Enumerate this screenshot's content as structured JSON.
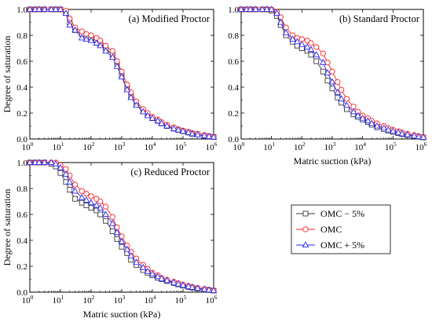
{
  "chart_data": {
    "type": "line",
    "log_x": true,
    "xlim": [
      1,
      1000000
    ],
    "ylim": [
      0,
      1.0
    ],
    "x_ticks": [
      {
        "base": "10",
        "exp": "0"
      },
      {
        "base": "10",
        "exp": "1"
      },
      {
        "base": "10",
        "exp": "2"
      },
      {
        "base": "10",
        "exp": "3"
      },
      {
        "base": "10",
        "exp": "4"
      },
      {
        "base": "10",
        "exp": "5"
      },
      {
        "base": "10",
        "exp": "6"
      }
    ],
    "y_ticks": [
      0.0,
      0.2,
      0.4,
      0.6,
      0.8,
      1.0
    ],
    "y_tick_labels": [
      "0.0",
      "0.2",
      "0.4",
      "0.6",
      "0.8",
      "1.0"
    ],
    "xlabel": "Matric suction (kPa)",
    "ylabel": "Degree of saturation",
    "x": [
      1,
      1.5,
      2,
      3,
      5,
      7,
      10,
      15,
      20,
      30,
      50,
      70,
      100,
      150,
      200,
      300,
      500,
      700,
      1000,
      1500,
      2000,
      3000,
      5000,
      7000,
      10000,
      15000,
      20000,
      30000,
      50000,
      70000,
      100000,
      150000,
      200000,
      300000,
      500000,
      700000,
      1000000
    ],
    "legend": {
      "placement": "right",
      "entries": [
        {
          "label": "OMC − 5%",
          "color": "#3a3a3a",
          "marker": "square"
        },
        {
          "label": "OMC",
          "color": "#ff2020",
          "marker": "circle"
        },
        {
          "label": "OMC + 5%",
          "color": "#2a2af0",
          "marker": "triangle"
        }
      ]
    },
    "panels": [
      {
        "label": "(a) Modified Proctor",
        "show_xlabel": false,
        "show_ylabel": true,
        "series": [
          {
            "name": "OMC − 5%",
            "values": [
              1.0,
              1.0,
              1.0,
              1.0,
              1.0,
              1.0,
              1.0,
              0.98,
              0.9,
              0.84,
              0.81,
              0.79,
              0.78,
              0.76,
              0.73,
              0.7,
              0.65,
              0.58,
              0.49,
              0.39,
              0.33,
              0.27,
              0.22,
              0.19,
              0.16,
              0.14,
              0.12,
              0.1,
              0.08,
              0.07,
              0.06,
              0.05,
              0.04,
              0.035,
              0.025,
              0.02,
              0.015
            ]
          },
          {
            "name": "OMC",
            "values": [
              1.0,
              1.0,
              1.0,
              1.0,
              1.0,
              1.0,
              1.0,
              0.99,
              0.93,
              0.86,
              0.83,
              0.81,
              0.8,
              0.78,
              0.76,
              0.72,
              0.68,
              0.6,
              0.52,
              0.42,
              0.36,
              0.29,
              0.23,
              0.2,
              0.17,
              0.15,
              0.13,
              0.11,
              0.09,
              0.075,
              0.065,
              0.055,
              0.045,
              0.04,
              0.03,
              0.022,
              0.017
            ]
          },
          {
            "name": "OMC + 5%",
            "values": [
              1.0,
              1.0,
              1.0,
              1.0,
              1.0,
              1.0,
              1.0,
              0.97,
              0.88,
              0.84,
              0.78,
              0.77,
              0.76,
              0.74,
              0.72,
              0.68,
              0.63,
              0.56,
              0.48,
              0.38,
              0.32,
              0.26,
              0.21,
              0.18,
              0.16,
              0.14,
              0.12,
              0.1,
              0.08,
              0.07,
              0.06,
              0.05,
              0.04,
              0.033,
              0.025,
              0.02,
              0.015
            ]
          }
        ]
      },
      {
        "label": "(b) Standard Proctor",
        "show_xlabel": true,
        "show_ylabel": false,
        "series": [
          {
            "name": "OMC − 5%",
            "values": [
              1.0,
              1.0,
              1.0,
              1.0,
              1.0,
              1.0,
              0.99,
              0.95,
              0.88,
              0.8,
              0.75,
              0.72,
              0.7,
              0.68,
              0.65,
              0.6,
              0.52,
              0.45,
              0.39,
              0.32,
              0.28,
              0.23,
              0.19,
              0.17,
              0.15,
              0.13,
              0.11,
              0.09,
              0.075,
              0.065,
              0.055,
              0.045,
              0.038,
              0.03,
              0.022,
              0.017,
              0.012
            ]
          },
          {
            "name": "OMC",
            "values": [
              1.0,
              1.0,
              1.0,
              1.0,
              1.0,
              1.0,
              1.0,
              0.98,
              0.94,
              0.86,
              0.8,
              0.78,
              0.77,
              0.76,
              0.74,
              0.71,
              0.66,
              0.59,
              0.52,
              0.44,
              0.38,
              0.31,
              0.25,
              0.21,
              0.18,
              0.16,
              0.14,
              0.12,
              0.1,
              0.085,
              0.07,
              0.06,
              0.05,
              0.04,
              0.03,
              0.022,
              0.016
            ]
          },
          {
            "name": "OMC + 5%",
            "values": [
              1.0,
              1.0,
              1.0,
              1.0,
              1.0,
              1.0,
              1.0,
              0.97,
              0.9,
              0.82,
              0.77,
              0.75,
              0.73,
              0.71,
              0.69,
              0.65,
              0.59,
              0.51,
              0.44,
              0.36,
              0.31,
              0.26,
              0.21,
              0.18,
              0.16,
              0.14,
              0.12,
              0.1,
              0.085,
              0.07,
              0.06,
              0.05,
              0.04,
              0.033,
              0.024,
              0.018,
              0.013
            ]
          }
        ]
      },
      {
        "label": "(c) Reduced Proctor",
        "show_xlabel": true,
        "show_ylabel": true,
        "series": [
          {
            "name": "OMC − 5%",
            "values": [
              1.0,
              1.0,
              1.0,
              1.0,
              0.99,
              0.97,
              0.92,
              0.85,
              0.79,
              0.72,
              0.69,
              0.67,
              0.65,
              0.63,
              0.6,
              0.55,
              0.47,
              0.41,
              0.35,
              0.3,
              0.25,
              0.21,
              0.17,
              0.15,
              0.13,
              0.11,
              0.1,
              0.085,
              0.07,
              0.06,
              0.05,
              0.04,
              0.035,
              0.028,
              0.02,
              0.016,
              0.012
            ]
          },
          {
            "name": "OMC",
            "values": [
              1.0,
              1.0,
              1.0,
              1.0,
              1.0,
              1.0,
              0.98,
              0.95,
              0.9,
              0.83,
              0.78,
              0.76,
              0.74,
              0.72,
              0.7,
              0.66,
              0.58,
              0.5,
              0.43,
              0.36,
              0.31,
              0.26,
              0.21,
              0.18,
              0.15,
              0.13,
              0.11,
              0.095,
              0.08,
              0.068,
              0.058,
              0.048,
              0.04,
              0.032,
              0.024,
              0.018,
              0.013
            ]
          },
          {
            "name": "OMC + 5%",
            "values": [
              1.0,
              1.0,
              1.0,
              1.0,
              1.0,
              0.99,
              0.96,
              0.91,
              0.85,
              0.78,
              0.73,
              0.71,
              0.69,
              0.67,
              0.65,
              0.6,
              0.53,
              0.46,
              0.39,
              0.33,
              0.28,
              0.23,
              0.19,
              0.16,
              0.14,
              0.12,
              0.105,
              0.09,
              0.075,
              0.063,
              0.053,
              0.044,
              0.037,
              0.03,
              0.022,
              0.017,
              0.012
            ]
          }
        ]
      }
    ]
  }
}
